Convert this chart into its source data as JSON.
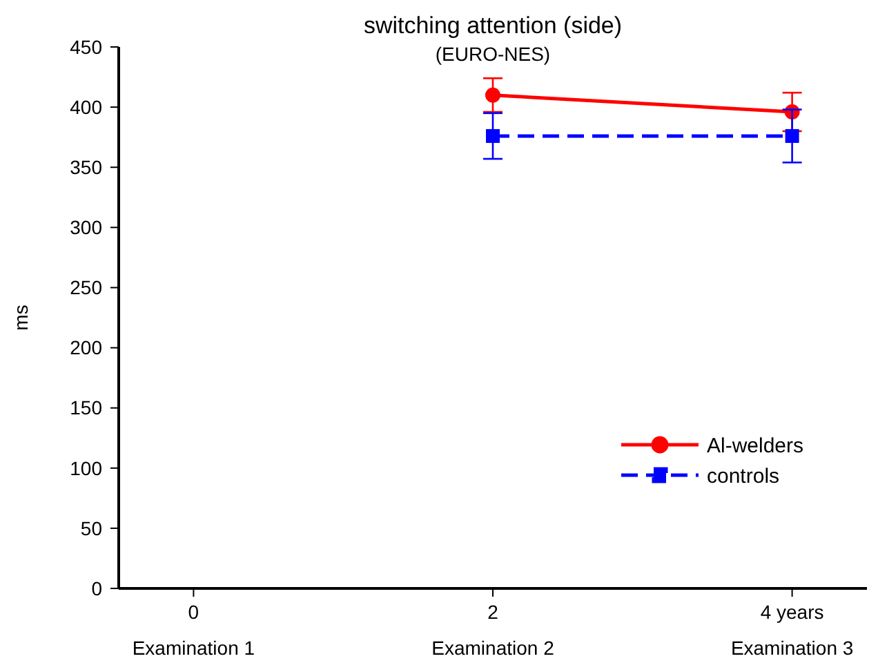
{
  "chart_data": {
    "type": "line",
    "title": "switching attention (side)",
    "subtitle": "(EURO-NES)",
    "ylabel": "ms",
    "xlim": [
      -0.5,
      4.5
    ],
    "xticks": [
      0,
      2,
      {
        "value": 4,
        "label": "4 years"
      }
    ],
    "annotations": [
      "Examination 1",
      "Examination 2",
      "Examination 3"
    ],
    "x": [
      2,
      4
    ],
    "ylim": [
      0,
      450
    ],
    "yticks": [
      0,
      50,
      100,
      150,
      200,
      250,
      300,
      350,
      400,
      450
    ],
    "grid": false,
    "legend": "bottom right",
    "series": [
      {
        "name": "Al-welders",
        "color": "#ff0000",
        "values": [
          410,
          396
        ],
        "errors": [
          14,
          16
        ],
        "marker": "circle",
        "line_style": "solid"
      },
      {
        "name": "controls",
        "color": "#0000ff",
        "values": [
          376,
          376
        ],
        "errors": [
          19,
          22
        ],
        "marker": "square",
        "line_style": "dashed"
      }
    ]
  }
}
